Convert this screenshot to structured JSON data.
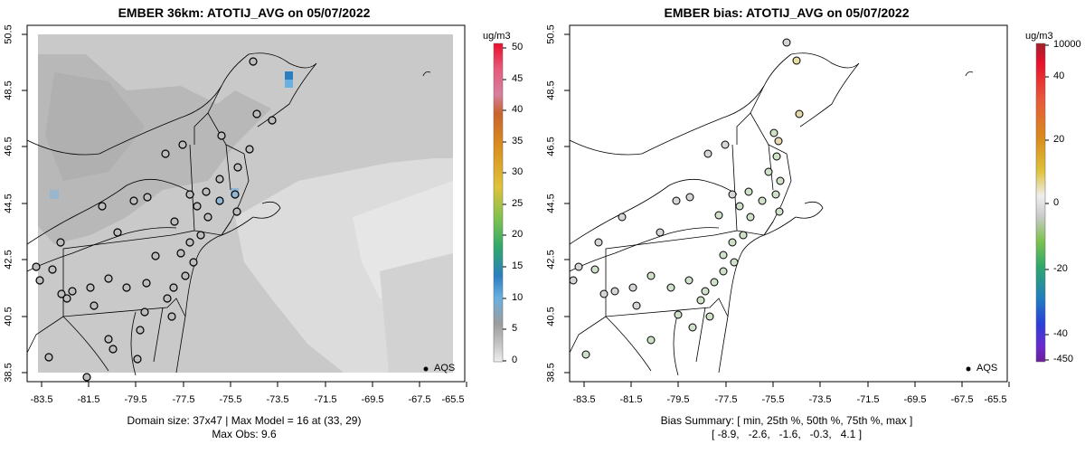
{
  "left": {
    "title": "EMBER 36km: ATOTIJ_AVG on 05/07/2022",
    "y_ticks": [
      "50.5",
      "48.5",
      "46.5",
      "44.5",
      "42.5",
      "40.5",
      "38.5"
    ],
    "x_ticks": [
      "-83.5",
      "-81.5",
      "-79.5",
      "-77.5",
      "-75.5",
      "-73.5",
      "-71.5",
      "-69.5",
      "-67.5",
      "-65.5"
    ],
    "colorbar": {
      "unit": "ug/m3",
      "ticks": [
        "50",
        "45",
        "40",
        "35",
        "30",
        "25",
        "20",
        "15",
        "10",
        "5",
        "0"
      ],
      "colors_top_to_bottom": [
        "#e8102a",
        "#e85a7a",
        "#d67fa0",
        "#c9632e",
        "#d98d1c",
        "#dfc23a",
        "#7ec24f",
        "#2fa86a",
        "#2b7fc0",
        "#6ab0e0",
        "#9c9c9c",
        "#c8c8c8",
        "#eeeeee"
      ]
    },
    "legend_label": "AQS",
    "footer_line1": "Domain size: 37x47 | Max Model = 16 at (33, 29)",
    "footer_line2": "Max Obs: 9.6"
  },
  "right": {
    "title": "EMBER bias: ATOTIJ_AVG on 05/07/2022",
    "y_ticks": [
      "50.5",
      "48.5",
      "46.5",
      "44.5",
      "42.5",
      "40.5",
      "38.5"
    ],
    "x_ticks": [
      "-83.5",
      "-81.5",
      "-79.5",
      "-77.5",
      "-75.5",
      "-73.5",
      "-71.5",
      "-69.5",
      "-67.5",
      "-65.5"
    ],
    "colorbar": {
      "unit": "ug/m3",
      "ticks": [
        "10000",
        "40",
        "20",
        "0",
        "-20",
        "-40",
        "-450"
      ],
      "colors_top_to_bottom": [
        "#a0202a",
        "#e8102a",
        "#e85a3a",
        "#d98d1c",
        "#dfc23a",
        "#eeeeee",
        "#cccccc",
        "#7ec24f",
        "#2fa86a",
        "#1f7fbf",
        "#2a3fd8",
        "#6a2ad0",
        "#6a1f9a"
      ]
    },
    "legend_label": "AQS",
    "footer_line1": "Bias Summary: [ min, 25th %, 50th %, 75th %, max ]",
    "footer_line2": "[ -8.9,   -2.6,   -1.6,   -0.3,   4.1 ]"
  }
}
